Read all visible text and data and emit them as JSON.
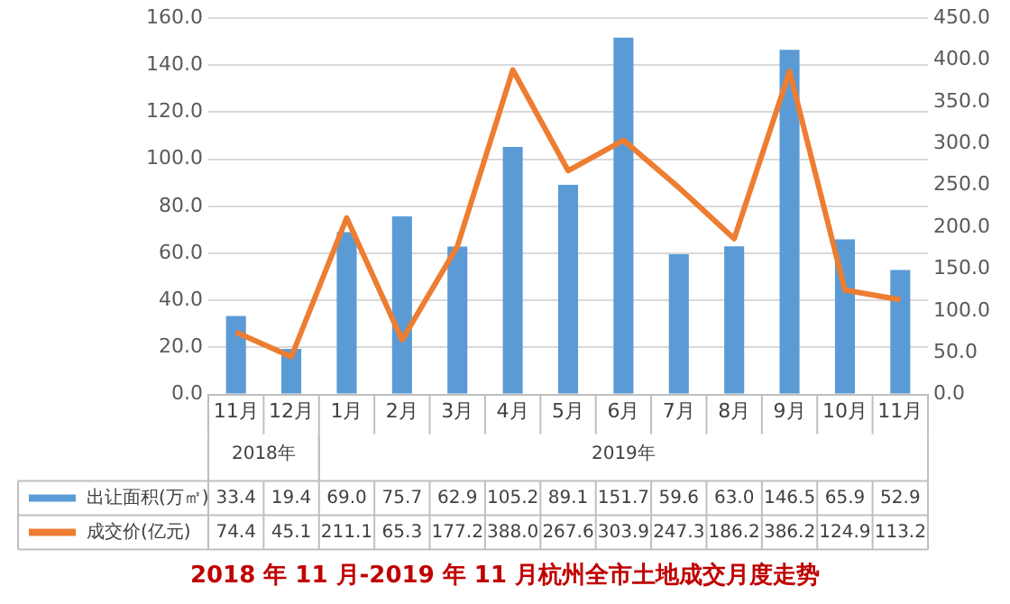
{
  "chart_data": {
    "type": "bar",
    "title": "2018 年 11 月-2019 年 11 月杭州全市土地成交月度走势",
    "categories": [
      "11月",
      "12月",
      "1月",
      "2月",
      "3月",
      "4月",
      "5月",
      "6月",
      "7月",
      "8月",
      "9月",
      "10月",
      "11月"
    ],
    "series": [
      {
        "name": "出让面积(万㎡)",
        "color": "#5b9bd5",
        "values": [
          33.4,
          19.4,
          69.0,
          75.7,
          62.9,
          105.2,
          89.1,
          151.7,
          59.6,
          63.0,
          146.5,
          65.9,
          52.9
        ],
        "value_labels": [
          "33.4",
          "19.4",
          "69.0",
          "75.7",
          "62.9",
          "105.2",
          "89.1",
          "151.7",
          "59.6",
          "63.0",
          "146.5",
          "65.9",
          "52.9"
        ]
      },
      {
        "name": "成交价(亿元)",
        "type": "line",
        "axis": "y2",
        "color": "#ed7d31",
        "values": [
          74.4,
          45.1,
          211.1,
          65.3,
          177.2,
          388.0,
          267.6,
          303.9,
          247.3,
          186.2,
          386.2,
          124.9,
          113.2
        ],
        "value_labels": [
          "74.4",
          "45.1",
          "211.1",
          "65.3",
          "177.2",
          "388.0",
          "267.6",
          "303.9",
          "247.3",
          "186.2",
          "386.2",
          "124.9",
          "113.2"
        ]
      }
    ],
    "annotations": [
      "2018年",
      "2019年"
    ],
    "ylim": [
      0,
      160
    ],
    "yticks": [
      {
        "value": 0,
        "label": "0.0"
      },
      {
        "value": 20,
        "label": "20.0"
      },
      {
        "value": 40,
        "label": "40.0"
      },
      {
        "value": 60,
        "label": "60.0"
      },
      {
        "value": 80,
        "label": "80.0"
      },
      {
        "value": 100,
        "label": "100.0"
      },
      {
        "value": 120,
        "label": "120.0"
      },
      {
        "value": 140,
        "label": "140.0"
      },
      {
        "value": 160,
        "label": "160.0"
      }
    ],
    "y2lim": [
      0,
      450
    ],
    "y2ticks": [
      {
        "value": 0,
        "label": "0.0"
      },
      {
        "value": 50,
        "label": "50.0"
      },
      {
        "value": 100,
        "label": "100.0"
      },
      {
        "value": 150,
        "label": "150.0"
      },
      {
        "value": 200,
        "label": "200.0"
      },
      {
        "value": 250,
        "label": "250.0"
      },
      {
        "value": 300,
        "label": "300.0"
      },
      {
        "value": 350,
        "label": "350.0"
      },
      {
        "value": 400,
        "label": "400.0"
      },
      {
        "value": 450,
        "label": "450.0"
      }
    ],
    "grid": "y",
    "legend": "bottom",
    "marker": "none"
  }
}
